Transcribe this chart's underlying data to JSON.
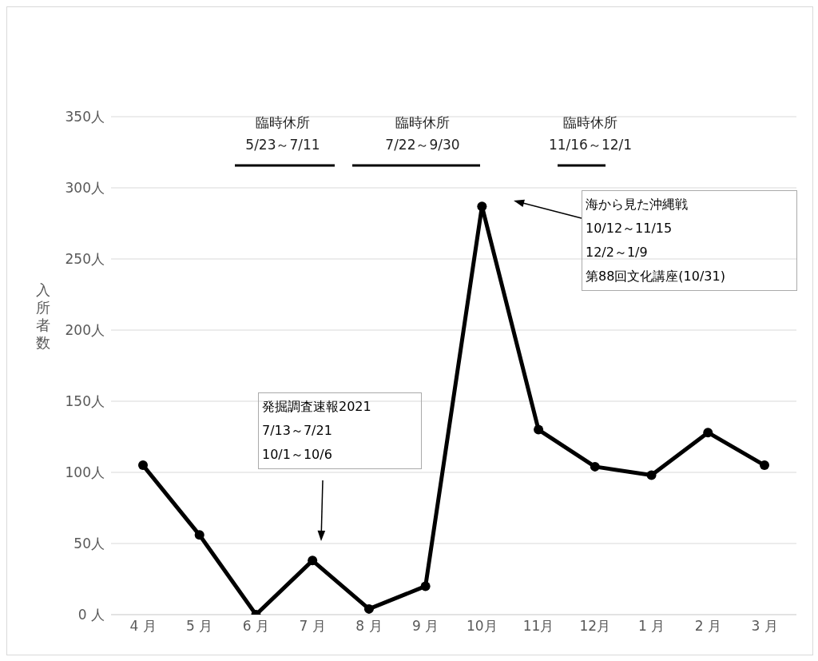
{
  "chart_data": {
    "type": "line",
    "ylabel": "入所者数",
    "categories": [
      "4 月",
      "5 月",
      "6 月",
      "7 月",
      "8 月",
      "9 月",
      "10月",
      "11月",
      "12月",
      "1 月",
      "2 月",
      "3 月"
    ],
    "series": [
      {
        "color": "#000000",
        "values": [
          105,
          56,
          0,
          38,
          4,
          20,
          287,
          130,
          104,
          98,
          128,
          105
        ]
      }
    ],
    "ylim": [
      0,
      350
    ],
    "yticks": [
      {
        "value": 0,
        "label": "0 人"
      },
      {
        "value": 50,
        "label": "50人"
      },
      {
        "value": 100,
        "label": "100人"
      },
      {
        "value": 150,
        "label": "150人"
      },
      {
        "value": 200,
        "label": "200人"
      },
      {
        "value": 250,
        "label": "250人"
      },
      {
        "value": 300,
        "label": "300人"
      },
      {
        "value": 350,
        "label": "350人"
      }
    ],
    "grid": "y",
    "legend": false,
    "marker": "circle",
    "line_style": "solid",
    "annotations": [
      "臨時休所\n5/23～7/11",
      "臨時休所\n7/22～9/30",
      "臨時休所\n11/16～12/1",
      "発掘調査速報2021\n7/13～7/21\n10/1～10/6",
      "海から見た沖縄戦\n10/12～11/15\n12/2～1/9\n第88回文化講座(10/31)"
    ]
  }
}
